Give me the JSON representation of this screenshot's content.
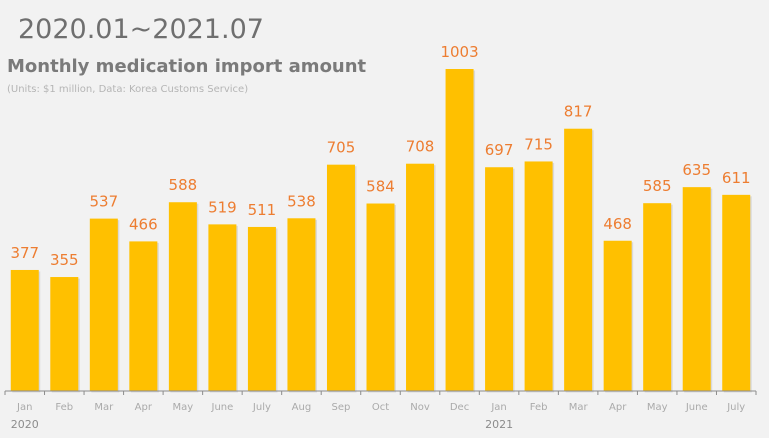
{
  "chart_data": {
    "type": "bar",
    "range_label": "2020.01~2021.07",
    "title": "Monthly medication import amount",
    "subtitle": "(Units: $1 million, Data: Korea Customs Service)",
    "categories": [
      "Jan",
      "Feb",
      "Mar",
      "Apr",
      "May",
      "June",
      "July",
      "Aug",
      "Sep",
      "Oct",
      "Nov",
      "Dec",
      "Jan",
      "Feb",
      "Mar",
      "Apr",
      "May",
      "June",
      "July"
    ],
    "year_labels": [
      {
        "label": "2020",
        "index": 0
      },
      {
        "label": "2021",
        "index": 12
      }
    ],
    "values": [
      377,
      355,
      537,
      466,
      588,
      519,
      511,
      538,
      705,
      584,
      708,
      1003,
      697,
      715,
      817,
      468,
      585,
      635,
      611
    ],
    "ylim": [
      0,
      1003
    ],
    "grid": false,
    "bar_color": "#FFC000",
    "label_color": "#ED7D31"
  }
}
